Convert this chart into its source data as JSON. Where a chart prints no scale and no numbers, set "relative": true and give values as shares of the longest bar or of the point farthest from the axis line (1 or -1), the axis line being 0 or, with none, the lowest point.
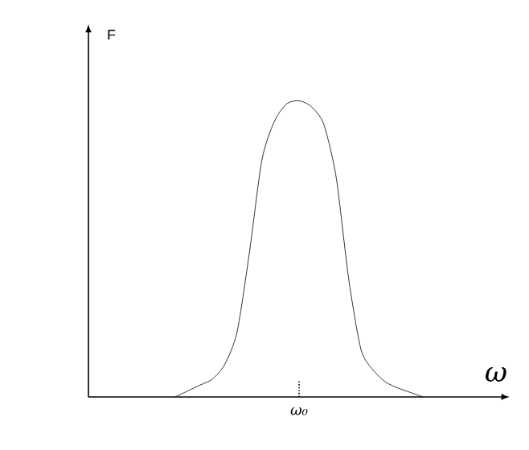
{
  "chart_data": {
    "type": "line",
    "relative": true,
    "xlabel": "ω",
    "ylabel": "F",
    "color": "#000000",
    "marker": "none",
    "annotations": [
      "ω₀"
    ],
    "categories": [
      null,
      null,
      null,
      null,
      null,
      null,
      null,
      null,
      null,
      null,
      null,
      null,
      null,
      null,
      null,
      null,
      null,
      null,
      null,
      null,
      null,
      null,
      null,
      null,
      null,
      null,
      null,
      null,
      null,
      null,
      null,
      null,
      null,
      null,
      null
    ],
    "values": [
      null,
      null,
      null,
      null,
      null,
      null,
      null,
      0,
      0.02,
      0.04,
      0.06,
      0.11,
      0.22,
      0.49,
      0.8,
      0.93,
      0.99,
      1,
      0.98,
      0.92,
      0.74,
      0.4,
      0.16,
      0.09,
      0.05,
      0.03,
      0.015,
      0,
      null,
      null,
      null,
      null,
      null,
      null,
      null
    ]
  }
}
